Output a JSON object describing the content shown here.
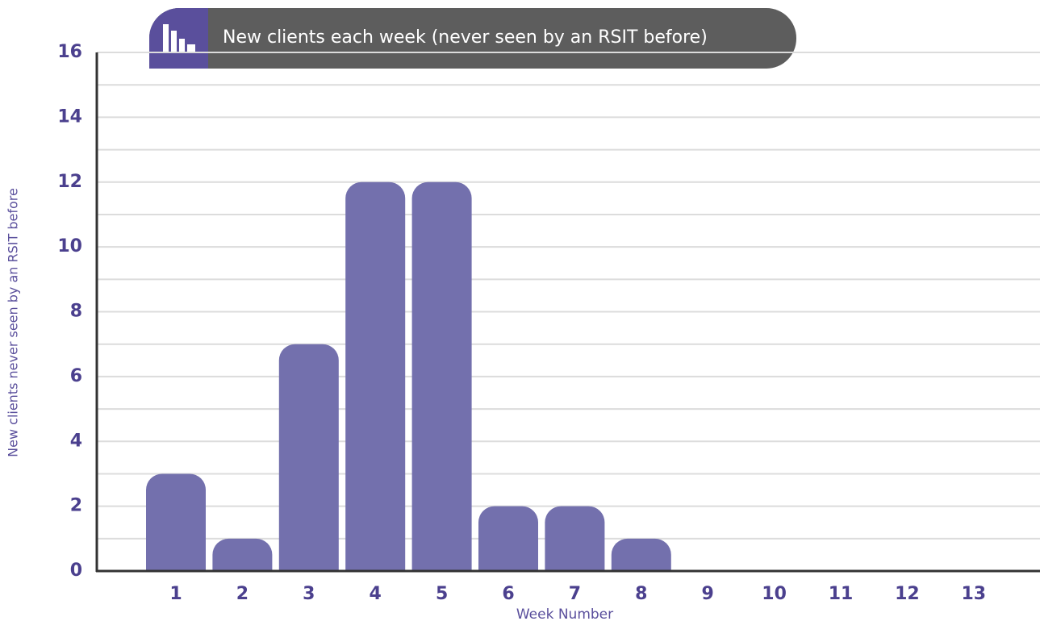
{
  "chart_data": {
    "type": "bar",
    "title": "New clients each week (never seen by an RSIT before)",
    "x_label": "Week Number",
    "y_label": "New clients never seen by an RSIT before",
    "categories": [
      "1",
      "2",
      "3",
      "4",
      "5",
      "6",
      "7",
      "8",
      "9",
      "10",
      "11",
      "12",
      "13"
    ],
    "values": [
      3,
      1,
      7,
      12,
      12,
      2,
      2,
      1,
      0,
      0,
      0,
      0,
      0
    ],
    "color": "#7370ad",
    "ylim": [
      0,
      16
    ],
    "yticks": [
      0,
      2,
      4,
      6,
      8,
      10,
      12,
      14,
      16
    ],
    "minor_yticks": [
      1,
      3,
      5,
      7,
      9,
      11,
      13,
      15
    ],
    "grid": true
  }
}
